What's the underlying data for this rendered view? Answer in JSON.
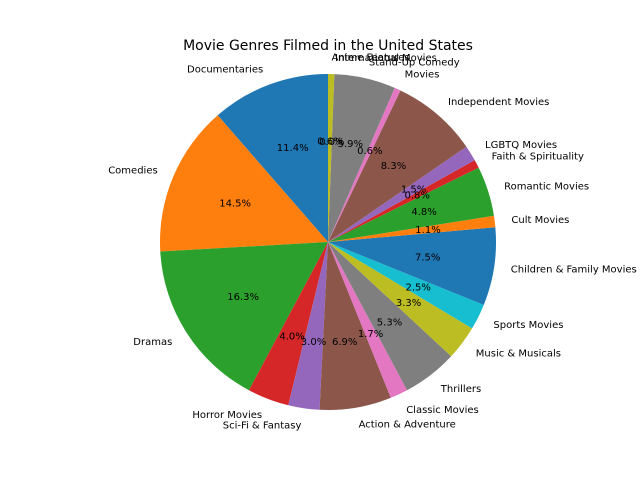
{
  "chart_data": {
    "type": "pie",
    "title": "Movie Genres Filmed in the United States",
    "start_angle": 90,
    "counterclock": true,
    "slices": [
      {
        "label": "Documentaries",
        "value": 11.4,
        "pct_text": "11.4%",
        "color": "#1f77b4"
      },
      {
        "label": "Comedies",
        "value": 14.5,
        "pct_text": "14.5%",
        "color": "#ff7f0e"
      },
      {
        "label": "Dramas",
        "value": 16.3,
        "pct_text": "16.3%",
        "color": "#2ca02c"
      },
      {
        "label": "Horror Movies",
        "value": 4.0,
        "pct_text": "4.0%",
        "color": "#d62728"
      },
      {
        "label": "Sci-Fi & Fantasy",
        "value": 3.0,
        "pct_text": "3.0%",
        "color": "#9467bd"
      },
      {
        "label": "Action & Adventure",
        "value": 6.9,
        "pct_text": "6.9%",
        "color": "#8c564b"
      },
      {
        "label": "Classic Movies",
        "value": 1.7,
        "pct_text": "1.7%",
        "color": "#e377c2"
      },
      {
        "label": "Thrillers",
        "value": 5.3,
        "pct_text": "5.3%",
        "color": "#7f7f7f"
      },
      {
        "label": "Music & Musicals",
        "value": 3.3,
        "pct_text": "3.3%",
        "color": "#bcbd22"
      },
      {
        "label": "Sports Movies",
        "value": 2.5,
        "pct_text": "2.5%",
        "color": "#17becf"
      },
      {
        "label": "Children & Family Movies",
        "value": 7.5,
        "pct_text": "7.5%",
        "color": "#1f77b4"
      },
      {
        "label": "Cult Movies",
        "value": 1.1,
        "pct_text": "1.1%",
        "color": "#ff7f0e"
      },
      {
        "label": "Romantic Movies",
        "value": 4.8,
        "pct_text": "4.8%",
        "color": "#2ca02c"
      },
      {
        "label": "Faith & Spirituality",
        "value": 0.8,
        "pct_text": "0.8%",
        "color": "#d62728"
      },
      {
        "label": "LGBTQ Movies",
        "value": 1.5,
        "pct_text": "1.5%",
        "color": "#9467bd"
      },
      {
        "label": "Independent Movies",
        "value": 8.3,
        "pct_text": "8.3%",
        "color": "#8c564b"
      },
      {
        "label": "Movies",
        "value": 0.6,
        "pct_text": "0.6%",
        "color": "#e377c2"
      },
      {
        "label": "Stand-Up Comedy",
        "value": 5.9,
        "pct_text": "5.9%",
        "color": "#7f7f7f"
      },
      {
        "label": "International Movies",
        "value": 0.0,
        "pct_text": "0.0%",
        "color": "#bcbd22"
      },
      {
        "label": "Anime Features",
        "value": 0.6,
        "pct_text": "0.6%",
        "color": "#bcbd22"
      }
    ]
  }
}
